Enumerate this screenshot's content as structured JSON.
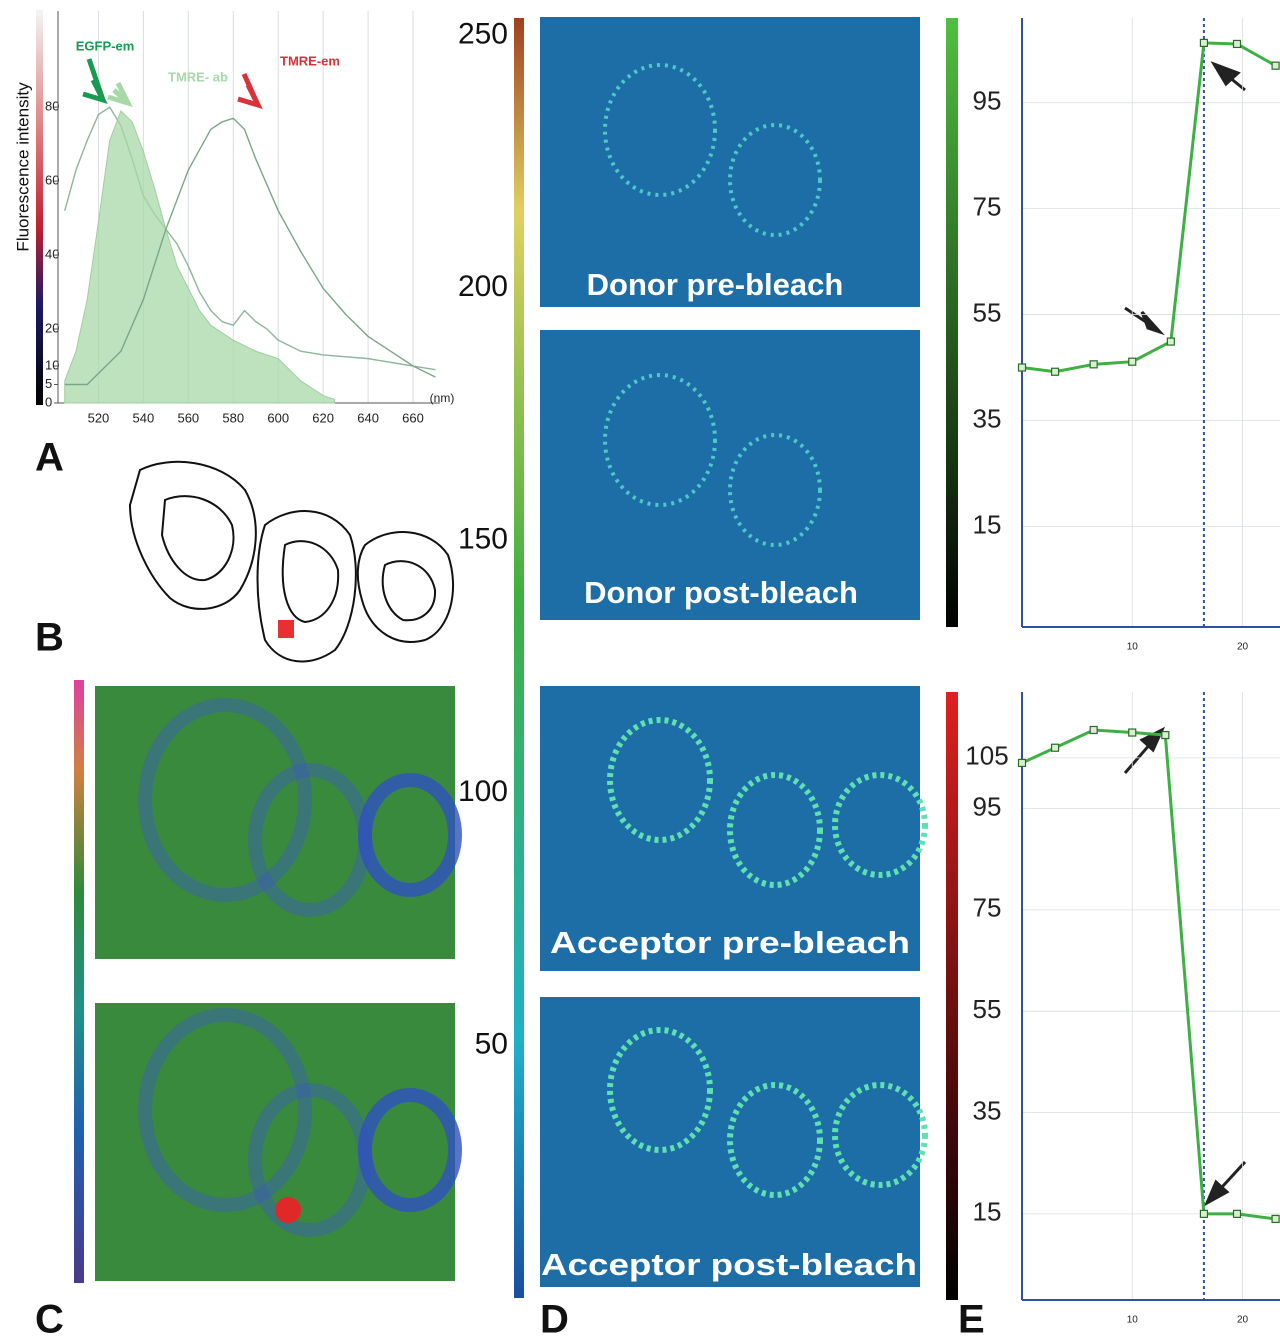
{
  "chart_data": [
    {
      "type": "line",
      "xlabel": "(nm)",
      "ylabel": "Fluorescence intensity",
      "xlim": [
        502,
        672
      ],
      "ylim": [
        0,
        106
      ],
      "xticks": [
        520,
        540,
        560,
        580,
        600,
        620,
        640,
        660
      ],
      "yticks": [
        0,
        5,
        10,
        20,
        40,
        60,
        80
      ],
      "grid": true,
      "series": [
        {
          "name": "EGFP-em",
          "color": "#1a9a50",
          "line_color": "#8fb59a",
          "fill": false,
          "x": [
            505,
            510,
            515,
            520,
            525,
            530,
            535,
            540,
            545,
            550,
            555,
            560,
            565,
            570,
            575,
            580,
            585,
            590,
            595,
            600,
            610,
            620,
            640,
            660,
            670
          ],
          "values": [
            52,
            63,
            71,
            78,
            80,
            75,
            66,
            56,
            51,
            47,
            43,
            37,
            30,
            25,
            22,
            21,
            25,
            22,
            20,
            17,
            14,
            13,
            12,
            10,
            9
          ]
        },
        {
          "name": "TMRE- ab",
          "color": "#a8d8a8",
          "line_color": "#9fcf9f",
          "fill": true,
          "x": [
            505,
            510,
            515,
            520,
            525,
            530,
            535,
            540,
            545,
            550,
            555,
            560,
            565,
            570,
            580,
            590,
            600,
            610,
            620,
            625
          ],
          "values": [
            6,
            14,
            28,
            49,
            71,
            79,
            76,
            68,
            58,
            47,
            37,
            31,
            25,
            21,
            17,
            14,
            12,
            6,
            2,
            1
          ]
        },
        {
          "name": "TMRE-em",
          "color": "#d8333a",
          "line_color": "#7aa688",
          "fill": false,
          "x": [
            505,
            515,
            520,
            530,
            540,
            550,
            560,
            570,
            575,
            580,
            585,
            590,
            600,
            610,
            620,
            630,
            640,
            650,
            660,
            670
          ],
          "values": [
            5,
            5,
            8,
            14,
            28,
            47,
            63,
            74,
            76,
            77,
            74,
            66,
            52,
            41,
            31,
            24,
            18,
            14,
            10,
            7
          ]
        }
      ]
    },
    {
      "type": "colorbar",
      "ylim": [
        0,
        253.5
      ],
      "yticks": [
        50,
        100,
        150,
        200,
        250
      ]
    },
    {
      "type": "line",
      "xlim": [
        0,
        23.4
      ],
      "ylim": [
        -4,
        111
      ],
      "xticks": [
        10,
        20
      ],
      "yticks": [
        15,
        35,
        55,
        75,
        95
      ],
      "grid": true,
      "vline": 16.5,
      "series": [
        {
          "color": "#3cb043",
          "x": [
            0,
            3,
            6.5,
            10,
            13.5,
            16.5,
            19.5,
            23
          ],
          "values": [
            45,
            44.2,
            45.6,
            46.1,
            49.9,
            106.3,
            106.1,
            102
          ]
        }
      ]
    },
    {
      "type": "line",
      "xlim": [
        0,
        23.4
      ],
      "ylim": [
        -2,
        118
      ],
      "xticks": [
        10,
        20
      ],
      "yticks": [
        15,
        35,
        55,
        75,
        95,
        105
      ],
      "grid": true,
      "vline": 16.5,
      "series": [
        {
          "color": "#3cb043",
          "x": [
            0,
            3,
            6.5,
            10,
            13,
            16.5,
            19.5,
            23
          ],
          "values": [
            104,
            107,
            110.5,
            110,
            109.5,
            15,
            15,
            14
          ]
        }
      ]
    }
  ],
  "panel_labels": [
    "A",
    "B",
    "C",
    "D",
    "E"
  ],
  "image_labels": [
    "Donor pre-bleach",
    "Donor post-bleach",
    "Acceptor pre-bleach",
    "Acceptor post-bleach"
  ]
}
